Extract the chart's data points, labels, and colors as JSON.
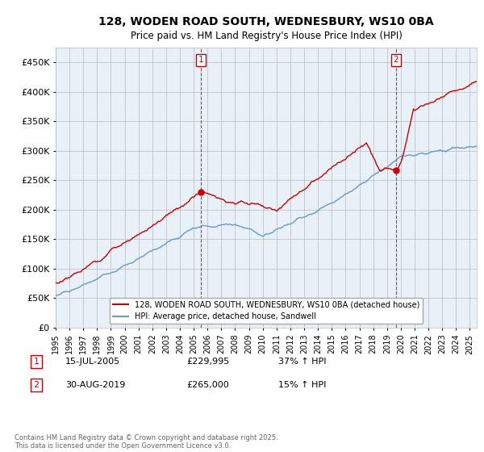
{
  "title": "128, WODEN ROAD SOUTH, WEDNESBURY, WS10 0BA",
  "subtitle": "Price paid vs. HM Land Registry's House Price Index (HPI)",
  "ylim": [
    0,
    475000
  ],
  "yticks": [
    0,
    50000,
    100000,
    150000,
    200000,
    250000,
    300000,
    350000,
    400000,
    450000
  ],
  "xlim": [
    1995,
    2025.5
  ],
  "sale1_x": 2005.54,
  "sale1_price": 229995,
  "sale1_label": "1",
  "sale1_date": "15-JUL-2005",
  "sale1_hpi_pct": "37% ↑ HPI",
  "sale2_x": 2019.66,
  "sale2_price": 265000,
  "sale2_label": "2",
  "sale2_date": "30-AUG-2019",
  "sale2_hpi_pct": "15% ↑ HPI",
  "legend_red": "128, WODEN ROAD SOUTH, WEDNESBURY, WS10 0BA (detached house)",
  "legend_blue": "HPI: Average price, detached house, Sandwell",
  "footnote": "Contains HM Land Registry data © Crown copyright and database right 2025.\nThis data is licensed under the Open Government Licence v3.0.",
  "red_color": "#cc0000",
  "blue_color": "#6699cc",
  "chart_bg_color": "#e8f0f8",
  "background_color": "#ffffff",
  "grid_color": "#bbbbbb"
}
